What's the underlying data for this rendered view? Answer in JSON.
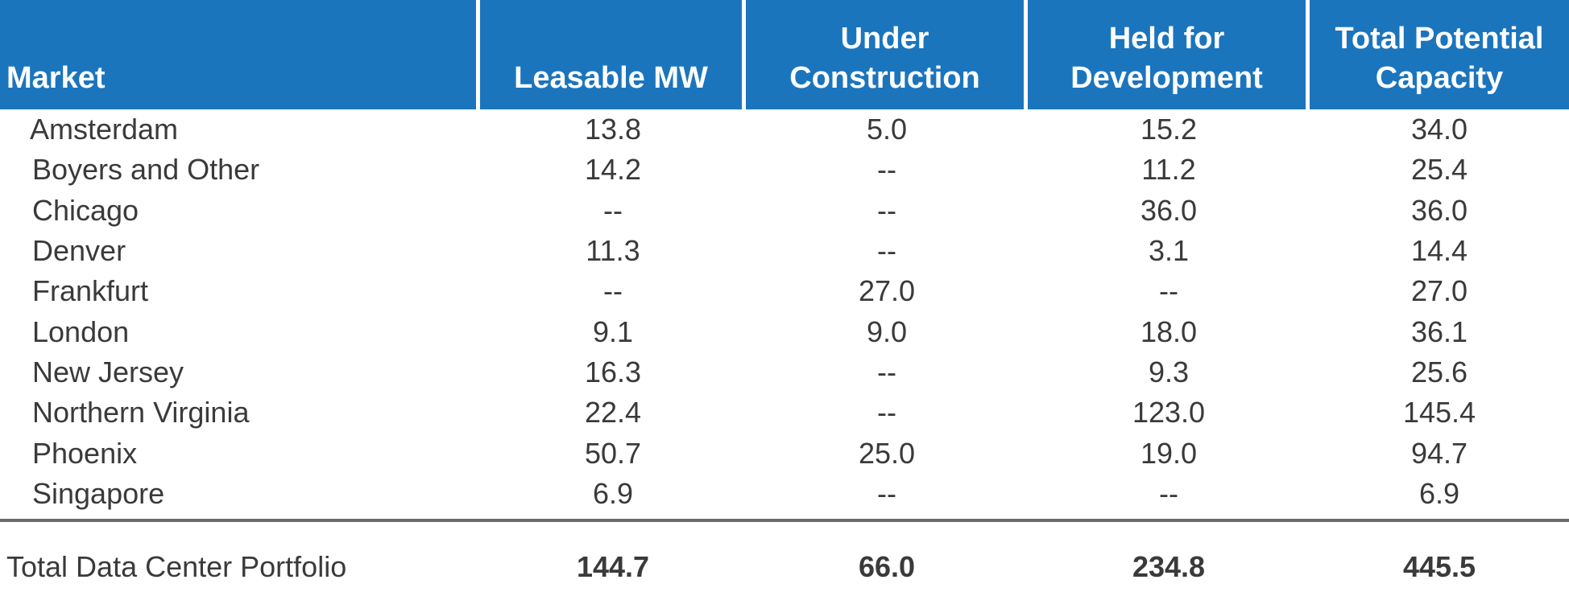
{
  "chart_data": {
    "type": "table",
    "columns": [
      "Market",
      "Leasable MW",
      "Under Construction",
      "Held for Development",
      "Total Potential Capacity"
    ],
    "header_lines": [
      [
        "Market"
      ],
      [
        "Leasable MW"
      ],
      [
        "Under",
        "Construction"
      ],
      [
        "Held for",
        "Development"
      ],
      [
        "Total Potential",
        "Capacity"
      ]
    ],
    "rows": [
      [
        "Amsterdam",
        "13.8",
        "5.0",
        "15.2",
        "34.0"
      ],
      [
        "Boyers and Other",
        "14.2",
        "--",
        "11.2",
        "25.4"
      ],
      [
        "Chicago",
        "--",
        "--",
        "36.0",
        "36.0"
      ],
      [
        "Denver",
        "11.3",
        "--",
        "3.1",
        "14.4"
      ],
      [
        "Frankfurt",
        "--",
        "27.0",
        "--",
        "27.0"
      ],
      [
        "London",
        "9.1",
        "9.0",
        "18.0",
        "36.1"
      ],
      [
        "New Jersey",
        "16.3",
        "--",
        "9.3",
        "25.6"
      ],
      [
        "Northern Virginia",
        "22.4",
        "--",
        "123.0",
        "145.4"
      ],
      [
        "Phoenix",
        "50.7",
        "25.0",
        "19.0",
        "94.7"
      ],
      [
        "Singapore",
        "6.9",
        "--",
        "--",
        "6.9"
      ]
    ],
    "total": [
      "Total Data Center Portfolio",
      "144.7",
      "66.0",
      "234.8",
      "445.5"
    ],
    "colors": {
      "header_background": "#1b75bd",
      "header_text": "#ffffff",
      "body_text": "#3a3a3a",
      "total_rule": "#6b6b6b"
    }
  }
}
